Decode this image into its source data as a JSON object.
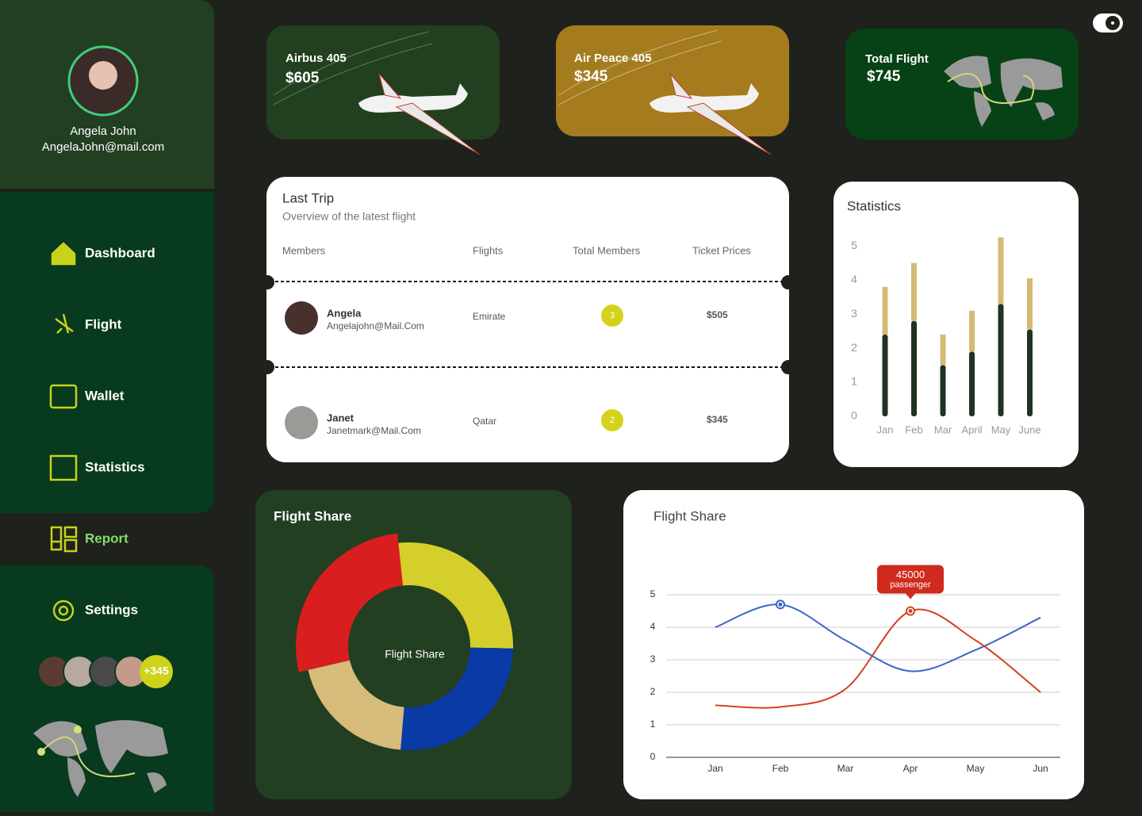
{
  "profile": {
    "name": "Angela John",
    "email": "AngelaJohn@mail.com"
  },
  "nav": [
    "Dashboard",
    "Flight",
    "Wallet",
    "Statistics",
    "Report",
    "Settings"
  ],
  "more_members": "+345",
  "cards": [
    {
      "title": "Airbus 405",
      "price": "$605"
    },
    {
      "title": "Air Peace 405",
      "price": "$345"
    },
    {
      "title": "Total Flight",
      "price": "$745"
    }
  ],
  "last_trip": {
    "title": "Last Trip",
    "subtitle": "Overview of the latest flight",
    "columns": [
      "Members",
      "Flights",
      "Total Members",
      "Ticket Prices"
    ],
    "rows": [
      {
        "name": "Angela",
        "email": "Angelajohn@Mail.Com",
        "flight": "Emirate",
        "members": 3,
        "price": "$505"
      },
      {
        "name": "Janet",
        "email": "Janetmark@Mail.Com",
        "flight": "Qatar",
        "members": 2,
        "price": "$345"
      }
    ]
  },
  "statistics": {
    "type": "bar",
    "stacked": true,
    "title": "Statistics",
    "categories": [
      "Jan",
      "Feb",
      "Mar",
      "April",
      "May",
      "June"
    ],
    "series": [
      {
        "color": "#1f3324",
        "values": [
          2.4,
          2.8,
          1.5,
          1.9,
          3.3,
          2.55
        ]
      },
      {
        "color": "#d4bb74",
        "values": [
          1.4,
          1.7,
          0.9,
          1.2,
          1.95,
          1.5
        ]
      }
    ],
    "ylim": [
      0,
      5.4
    ],
    "yticks": [
      0,
      1,
      2,
      3,
      4,
      5
    ]
  },
  "flight_share": {
    "type": "donut",
    "title": "Flight Share",
    "center_label": "Flight Share",
    "values": [
      27,
      26,
      20,
      27
    ],
    "colors": [
      "#d4cf2a",
      "#0a3aa6",
      "#d6bb7a",
      "#d81e1e"
    ]
  },
  "flight_share_line": {
    "type": "line",
    "title": "Flight Share",
    "categories": [
      "Jan",
      "Feb",
      "Mar",
      "Apr",
      "May",
      "Jun"
    ],
    "series": [
      {
        "color": "#3a64c8",
        "values": [
          4.0,
          4.7,
          3.6,
          2.65,
          3.3,
          4.3
        ]
      },
      {
        "color": "#d4401e",
        "values": [
          1.6,
          1.55,
          2.1,
          4.5,
          3.6,
          2.0
        ]
      }
    ],
    "ylim": [
      0,
      5
    ],
    "yticks": [
      0,
      1,
      2,
      3,
      4,
      5
    ],
    "grid": true,
    "annotation": {
      "label": "45000",
      "sublabel": "passenger"
    }
  }
}
